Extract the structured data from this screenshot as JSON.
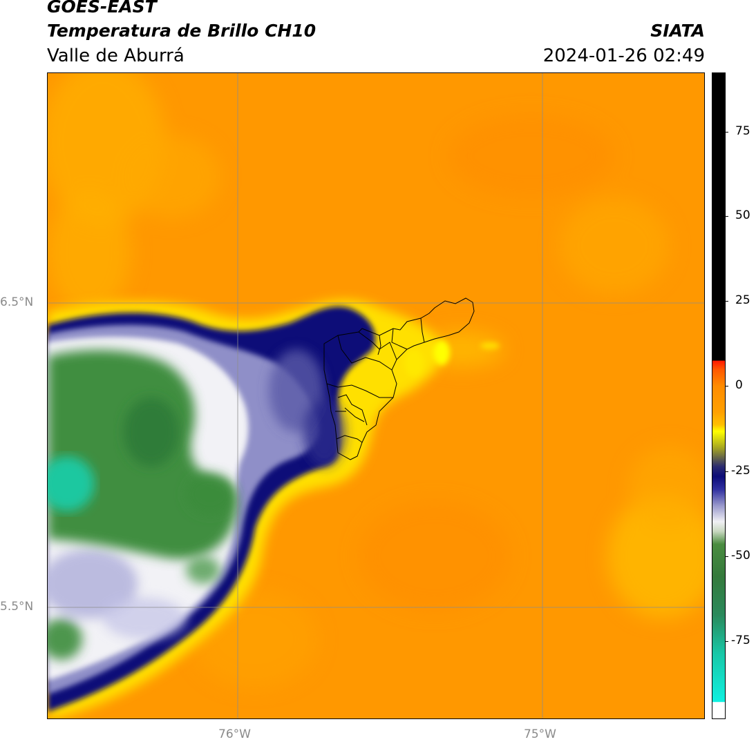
{
  "header": {
    "satellite": "GOES-EAST",
    "product": "Temperatura de Brillo CH10",
    "region": "Valle de Aburrá",
    "agency": "SIATA",
    "datetime": "2024-01-26 02:49"
  },
  "map": {
    "lat_labels": [
      "6.5°N",
      "5.5°N"
    ],
    "lon_labels": [
      "76°W",
      "75°W"
    ],
    "gridlines": true,
    "colors": {
      "warm_orange": "#ff9a00",
      "deep_orange": "#ff8c00",
      "yellow": "#ffd200",
      "bright_yellow": "#ffff00",
      "navy": "#0d0d7a",
      "lavender": "#9b9bd0",
      "white": "#f4f4f4",
      "green": "#3c8c3c",
      "dark_green": "#2d7a36",
      "teal": "#1ec8a0"
    }
  },
  "colorbar": {
    "ticks": [
      "75",
      "50",
      "25",
      "0",
      "-25",
      "-50",
      "-75"
    ]
  }
}
